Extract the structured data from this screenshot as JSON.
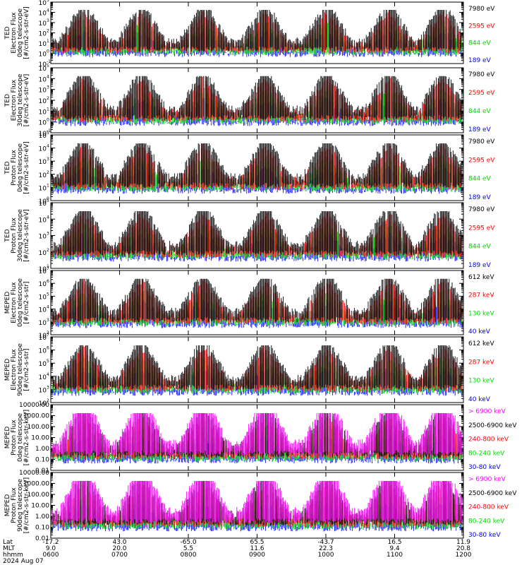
{
  "chart_data": [
    {
      "type": "scatter",
      "ylabel": [
        "TED",
        "Electron Flux",
        "0deg telescope",
        "[#/cm2-s-str-eV]"
      ],
      "y_ticks": [
        "10",
        "10",
        "10",
        "10",
        "10",
        "10",
        "10"
      ],
      "y_tick_exps": [
        "-1",
        "0",
        "1",
        "2",
        "3",
        "4",
        "5"
      ],
      "y_tick_values": [
        0.1,
        1,
        10,
        100,
        1000,
        10000,
        100000
      ],
      "yscale": "log",
      "series": [
        {
          "name": "7980 eV",
          "color": "#000000"
        },
        {
          "name": "2595 eV",
          "color": "#ff0000"
        },
        {
          "name": "844 eV",
          "color": "#00dd00"
        },
        {
          "name": "189 eV",
          "color": "#0000ff"
        }
      ]
    },
    {
      "type": "scatter",
      "ylabel": [
        "TED",
        "Electron Flux",
        "30deg telescope",
        "[#/cm2-s-str-eV]"
      ],
      "y_ticks": [
        "10",
        "10",
        "10",
        "10",
        "10",
        "10",
        "10"
      ],
      "y_tick_exps": [
        "-1",
        "0",
        "1",
        "2",
        "3",
        "4",
        "5"
      ],
      "y_tick_values": [
        0.1,
        1,
        10,
        100,
        1000,
        10000,
        100000
      ],
      "yscale": "log",
      "series": [
        {
          "name": "7980 eV",
          "color": "#000000"
        },
        {
          "name": "2595 eV",
          "color": "#ff0000"
        },
        {
          "name": "844 eV",
          "color": "#00dd00"
        },
        {
          "name": "189 eV",
          "color": "#0000ff"
        }
      ]
    },
    {
      "type": "scatter",
      "ylabel": [
        "TED",
        "Proton Flux",
        "0deg telescope",
        "[#/cm2-s-str-eV]"
      ],
      "y_ticks": [
        "10",
        "10",
        "10",
        "10",
        "10",
        "10"
      ],
      "y_tick_exps": [
        "0",
        "1",
        "2",
        "3",
        "4",
        "5"
      ],
      "y_tick_values": [
        1,
        10,
        100,
        1000,
        10000,
        100000
      ],
      "yscale": "log",
      "series": [
        {
          "name": "7980 eV",
          "color": "#000000"
        },
        {
          "name": "2595 eV",
          "color": "#ff0000"
        },
        {
          "name": "844 eV",
          "color": "#00dd00"
        },
        {
          "name": "189 eV",
          "color": "#0000ff"
        }
      ]
    },
    {
      "type": "scatter",
      "ylabel": [
        "TED",
        "Proton Flux",
        "30deg telescope",
        "[#/cm2-s-str-eV]"
      ],
      "y_ticks": [
        "10",
        "10",
        "10",
        "10",
        "10"
      ],
      "y_tick_exps": [
        "1",
        "2",
        "3",
        "4",
        "5"
      ],
      "y_tick_values": [
        10,
        100,
        1000,
        10000,
        100000
      ],
      "yscale": "log",
      "series": [
        {
          "name": "7980 eV",
          "color": "#000000"
        },
        {
          "name": "2595 eV",
          "color": "#ff0000"
        },
        {
          "name": "844 eV",
          "color": "#00dd00"
        },
        {
          "name": "189 eV",
          "color": "#0000ff"
        }
      ]
    },
    {
      "type": "scatter",
      "ylabel": [
        "MEPED",
        "Electron Flux",
        "0deg telescope",
        "[#/cm2-s-str]"
      ],
      "y_ticks": [
        "10",
        "10",
        "10",
        "10",
        "10",
        "10"
      ],
      "y_tick_exps": [
        "2",
        "3",
        "4",
        "5",
        "6",
        "7"
      ],
      "y_tick_values": [
        100,
        1000,
        10000,
        100000,
        1000000,
        10000000
      ],
      "yscale": "log",
      "series": [
        {
          "name": "612 keV",
          "color": "#000000"
        },
        {
          "name": "287 keV",
          "color": "#ff0000"
        },
        {
          "name": "130 keV",
          "color": "#00dd00"
        },
        {
          "name": "40 keV",
          "color": "#0000ff"
        }
      ]
    },
    {
      "type": "scatter",
      "ylabel": [
        "MEPED",
        "Electron Flux",
        "90deg telescope",
        "[#/cm2-s-str]"
      ],
      "y_ticks": [
        "10",
        "10",
        "10",
        "10",
        "10",
        "10"
      ],
      "y_tick_exps": [
        "2",
        "3",
        "4",
        "5",
        "6",
        "7"
      ],
      "y_tick_values": [
        100,
        1000,
        10000,
        100000,
        1000000,
        10000000
      ],
      "yscale": "log",
      "series": [
        {
          "name": "612 keV",
          "color": "#000000"
        },
        {
          "name": "287 keV",
          "color": "#ff0000"
        },
        {
          "name": "130 keV",
          "color": "#00dd00"
        },
        {
          "name": "40 keV",
          "color": "#0000ff"
        }
      ]
    },
    {
      "type": "scatter",
      "ylabel": [
        "MEPED",
        "Proton Flux",
        "0deg telescope",
        "[#/cm2-s-str-keV]"
      ],
      "y_ticks": [
        "10000.00",
        "1000.00",
        "100.00",
        "10.00",
        "1.00",
        "0.10",
        "0.01"
      ],
      "y_tick_values": [
        10000,
        1000,
        100,
        10,
        1,
        0.1,
        0.01
      ],
      "yscale": "log",
      "series": [
        {
          "name": "> 6900 keV",
          "color": "#ff00ff"
        },
        {
          "name": "2500-6900 keV",
          "color": "#000000"
        },
        {
          "name": "240-800 keV",
          "color": "#ff0000"
        },
        {
          "name": "80-240 keV",
          "color": "#00dd00"
        },
        {
          "name": "30-80 keV",
          "color": "#0000ff"
        }
      ]
    },
    {
      "type": "scatter",
      "ylabel": [
        "MEPED",
        "Proton Flux",
        "90deg telescope",
        "[#/cm2-s-str-keV]"
      ],
      "y_ticks": [
        "10000.00",
        "1000.00",
        "100.00",
        "10.00",
        "1.00",
        "0.10",
        "0.01"
      ],
      "y_tick_values": [
        10000,
        1000,
        100,
        10,
        1,
        0.1,
        0.01
      ],
      "yscale": "log",
      "series": [
        {
          "name": "> 6900 keV",
          "color": "#ff00ff"
        },
        {
          "name": "2500-6900 keV",
          "color": "#000000"
        },
        {
          "name": "240-800 keV",
          "color": "#ff0000"
        },
        {
          "name": "80-240 keV",
          "color": "#00dd00"
        },
        {
          "name": "30-80 keV",
          "color": "#0000ff"
        }
      ]
    }
  ],
  "x_axis": {
    "row_labels": [
      "Lat",
      "MLT",
      "hhmm",
      "2024 Aug 07"
    ],
    "ticks": [
      {
        "lat": "-17.2",
        "mlt": "9.0",
        "hhmm": "0600"
      },
      {
        "lat": "43.0",
        "mlt": "20.0",
        "hhmm": "0700"
      },
      {
        "lat": "-65.0",
        "mlt": "5.5",
        "hhmm": "0800"
      },
      {
        "lat": "65.5",
        "mlt": "11.6",
        "hhmm": "0900"
      },
      {
        "lat": "-43.7",
        "mlt": "22.3",
        "hhmm": "1000"
      },
      {
        "lat": "16.5",
        "mlt": "9.4",
        "hhmm": "1100"
      },
      {
        "lat": "11.9",
        "mlt": "20.8",
        "hhmm": "1200"
      }
    ]
  }
}
